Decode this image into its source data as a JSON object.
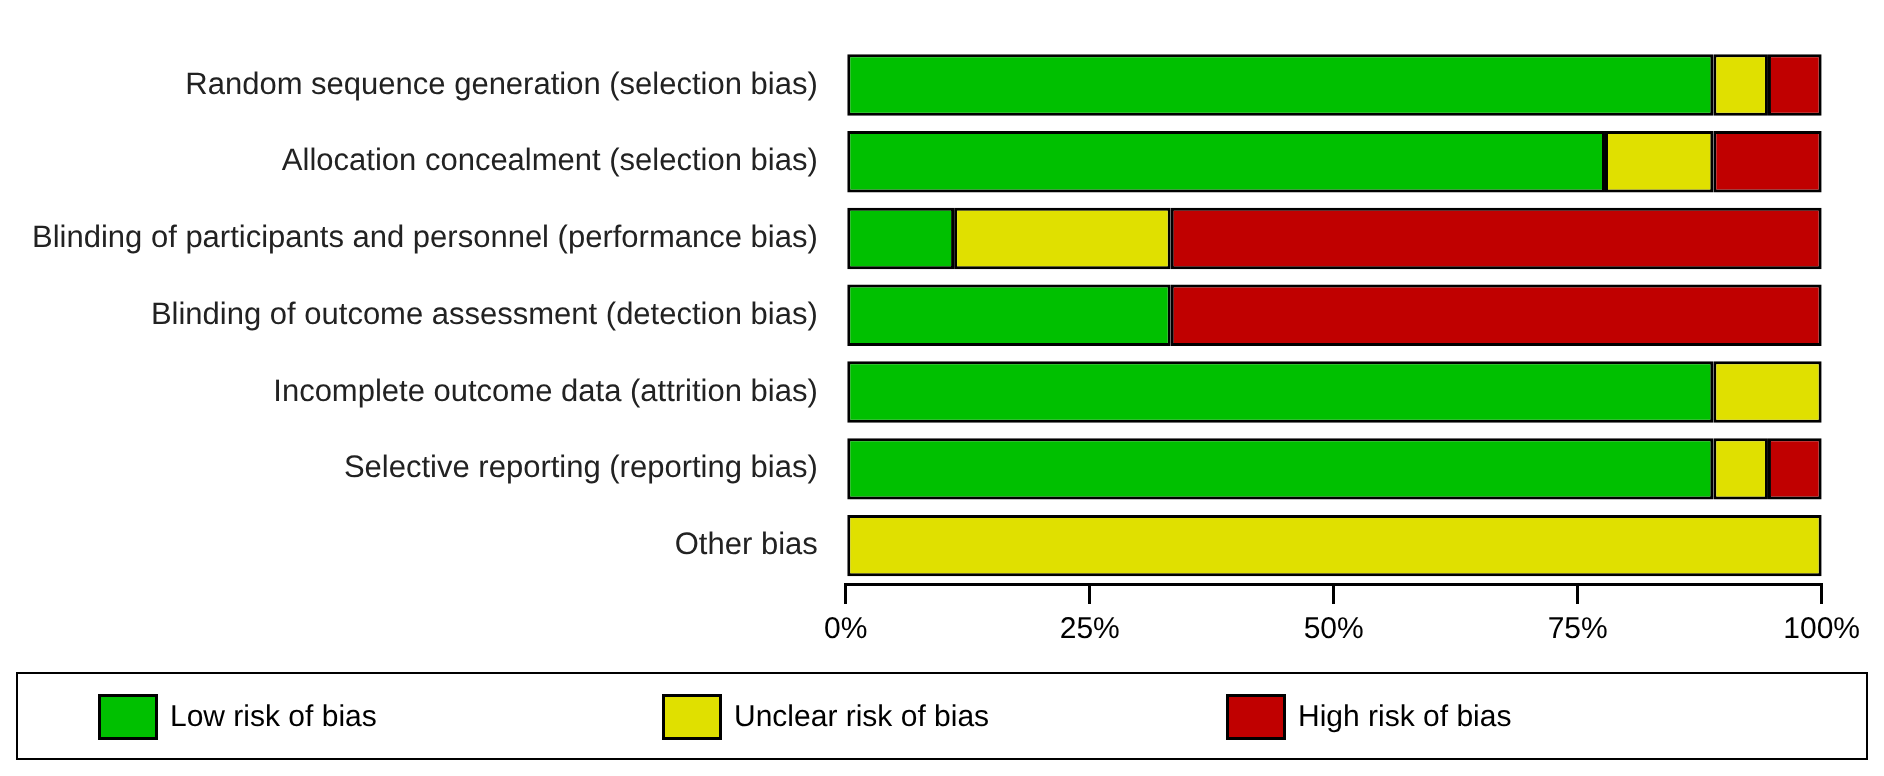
{
  "chart_data": {
    "type": "bar",
    "orientation": "horizontal",
    "stacked": true,
    "legend": "bottom",
    "grid": false,
    "categories": [
      "Random sequence generation (selection bias)",
      "Allocation concealment (selection bias)",
      "Blinding of participants and personnel (performance bias)",
      "Blinding of outcome assessment (detection bias)",
      "Incomplete outcome data (attrition bias)",
      "Selective reporting (reporting bias)",
      "Other bias"
    ],
    "series": [
      {
        "name": "Low risk of bias",
        "color": "#00c000",
        "values": [
          88.9,
          77.8,
          11.1,
          33.3,
          88.9,
          88.9,
          0
        ]
      },
      {
        "name": "Unclear risk of bias",
        "color": "#e0e000",
        "values": [
          5.6,
          11.1,
          22.2,
          0,
          11.1,
          5.6,
          100
        ]
      },
      {
        "name": "High risk of bias",
        "color": "#c00000",
        "values": [
          5.5,
          11.1,
          66.7,
          66.7,
          0,
          5.5,
          0
        ]
      }
    ],
    "xlim": [
      0,
      100
    ],
    "xticks": [
      {
        "value": 0,
        "label": "0%"
      },
      {
        "value": 25,
        "label": "25%"
      },
      {
        "value": 50,
        "label": "50%"
      },
      {
        "value": 75,
        "label": "75%"
      },
      {
        "value": 100,
        "label": "100%"
      }
    ]
  }
}
